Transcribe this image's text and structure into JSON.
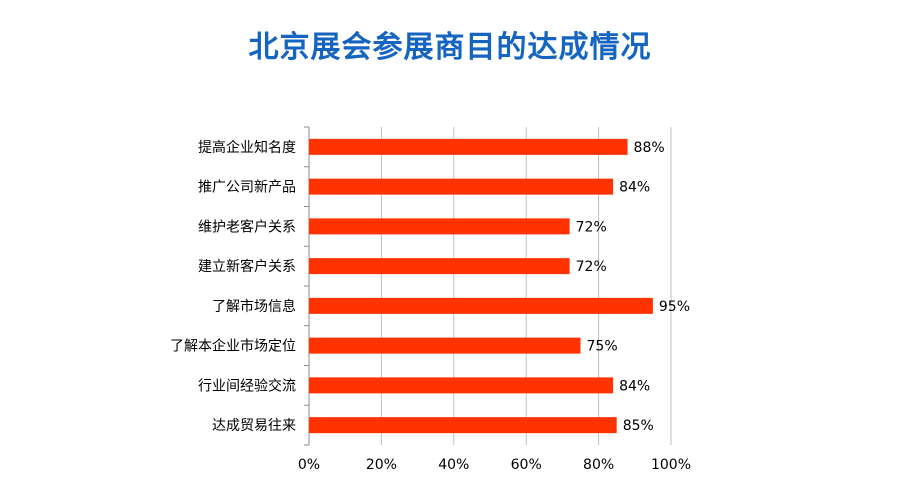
{
  "chart_data": {
    "type": "bar",
    "orientation": "horizontal",
    "title": "北京展会参展商目的达成情况",
    "categories": [
      "提高企业知名度",
      "推广公司新产品",
      "维护老客户关系",
      "建立新客户关系",
      "了解市场信息",
      "了解本企业市场定位",
      "行业间经验交流",
      "达成贸易往来"
    ],
    "values": [
      88,
      84,
      72,
      72,
      95,
      75,
      84,
      85
    ],
    "value_labels": [
      "88%",
      "84%",
      "72%",
      "72%",
      "95%",
      "75%",
      "84%",
      "85%"
    ],
    "xlim": [
      0,
      100
    ],
    "x_ticks": [
      0,
      20,
      40,
      60,
      80,
      100
    ],
    "x_tick_labels": [
      "0%",
      "20%",
      "40%",
      "60%",
      "80%",
      "100%"
    ],
    "grid": true,
    "legend": false,
    "bar_color": "#ff3300",
    "title_color": "#1565c0"
  }
}
